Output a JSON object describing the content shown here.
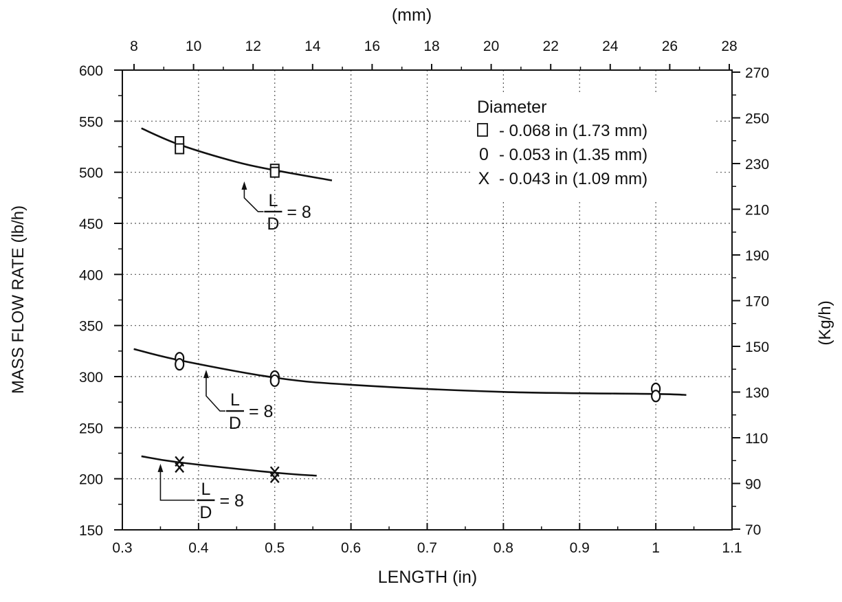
{
  "chart_data": {
    "type": "scatter",
    "xlabel": "LENGTH (in)",
    "ylabel": "MASS FLOW RATE (lb/h)",
    "x2label": "(mm)",
    "y2label": "(Kg/h)",
    "xlim": [
      0.3,
      1.1
    ],
    "ylim": [
      150,
      600
    ],
    "x2lim": [
      8,
      28
    ],
    "y2lim": [
      70,
      270
    ],
    "x_ticks": [
      "0.3",
      "0.4",
      "0.5",
      "0.6",
      "0.7",
      "0.8",
      "0.9",
      "1",
      "1.1"
    ],
    "y_ticks": [
      "150",
      "200",
      "250",
      "300",
      "350",
      "400",
      "450",
      "500",
      "550",
      "600"
    ],
    "x2_ticks": [
      "8",
      "10",
      "12",
      "14",
      "16",
      "18",
      "20",
      "22",
      "24",
      "26",
      "28"
    ],
    "y2_ticks": [
      "70",
      "90",
      "110",
      "130",
      "150",
      "170",
      "190",
      "210",
      "230",
      "250",
      "270"
    ],
    "grid": true,
    "legend_position": "top-right",
    "legend": {
      "title": "Diameter",
      "entries": [
        {
          "symbol": "□",
          "label": "- 0.068 in (1.73 mm)"
        },
        {
          "symbol": "0",
          "label": "- 0.053 in (1.35 mm)"
        },
        {
          "symbol": "X",
          "label": "- 0.043 in (1.09 mm)"
        }
      ]
    },
    "series": [
      {
        "marker": "square",
        "points": [
          [
            0.375,
            530
          ],
          [
            0.375,
            523
          ],
          [
            0.5,
            503
          ],
          [
            0.5,
            500
          ]
        ],
        "curve": [
          [
            0.325,
            543
          ],
          [
            0.375,
            527
          ],
          [
            0.45,
            510
          ],
          [
            0.5,
            502
          ],
          [
            0.575,
            492
          ]
        ],
        "annotation": {
          "num": "L",
          "den": "D",
          "eq": "= 8",
          "at": [
            0.46,
            483
          ]
        }
      },
      {
        "marker": "circle",
        "points": [
          [
            0.375,
            318
          ],
          [
            0.375,
            312
          ],
          [
            0.5,
            300
          ],
          [
            0.5,
            296
          ],
          [
            1.0,
            288
          ],
          [
            1.0,
            281
          ]
        ],
        "curve": [
          [
            0.315,
            327
          ],
          [
            0.375,
            316
          ],
          [
            0.5,
            299
          ],
          [
            0.6,
            292
          ],
          [
            0.8,
            285
          ],
          [
            1.0,
            283
          ],
          [
            1.04,
            282
          ]
        ],
        "annotation": {
          "num": "L",
          "den": "D",
          "eq": "= 8",
          "at": [
            0.41,
            308
          ]
        }
      },
      {
        "marker": "x",
        "points": [
          [
            0.375,
            217
          ],
          [
            0.375,
            211
          ],
          [
            0.5,
            207
          ],
          [
            0.5,
            201
          ]
        ],
        "curve": [
          [
            0.325,
            222
          ],
          [
            0.375,
            216
          ],
          [
            0.5,
            206
          ],
          [
            0.555,
            203
          ]
        ],
        "annotation": {
          "num": "L",
          "den": "D",
          "eq": "= 8",
          "at": [
            0.35,
            216
          ]
        }
      }
    ]
  }
}
